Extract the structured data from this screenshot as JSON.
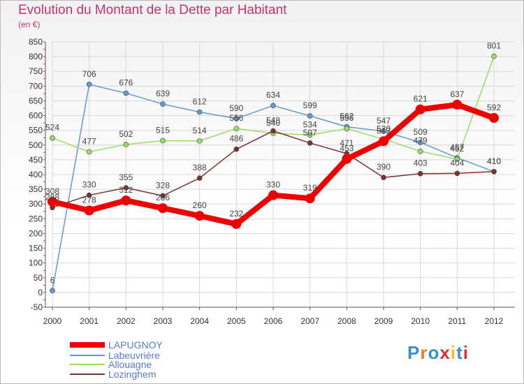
{
  "header": {
    "title": "Evolution du Montant de la Dette par Habitant",
    "subtitle": "(en €)"
  },
  "chart_data": {
    "type": "line",
    "title": "Evolution du Montant de la Dette par Habitant",
    "subtitle": "(en €)",
    "xlabel": "",
    "ylabel": "",
    "x": [
      "2000",
      "2001",
      "2002",
      "2003",
      "2004",
      "2005",
      "2006",
      "2007",
      "2008",
      "2009",
      "2010",
      "2011",
      "2012"
    ],
    "ylim": [
      -50,
      850
    ],
    "yticks": [
      -50,
      0,
      50,
      100,
      150,
      200,
      250,
      300,
      350,
      400,
      450,
      500,
      550,
      600,
      650,
      700,
      750,
      800,
      850
    ],
    "grid": true,
    "legend_position": "bottom-left",
    "series": [
      {
        "name": "LAPUGNOY",
        "color": "#ee0000",
        "values": [
          308,
          278,
          312,
          286,
          260,
          232,
          330,
          319,
          453,
          513,
          621,
          637,
          592
        ]
      },
      {
        "name": "Labeuvrière",
        "color": "#6699cc",
        "values": [
          6,
          706,
          676,
          639,
          612,
          590,
          634,
          599,
          562,
          547,
          509,
          457,
          410
        ]
      },
      {
        "name": "Allouagne",
        "color": "#99dd66",
        "values": [
          524,
          477,
          502,
          515,
          514,
          556,
          540,
          534,
          556,
          520,
          479,
          452,
          801
        ]
      },
      {
        "name": "Lozinghem",
        "color": "#7a3333",
        "values": [
          288,
          330,
          355,
          328,
          388,
          486,
          548,
          507,
          471,
          390,
          403,
          404,
          410
        ]
      }
    ]
  },
  "legend": {
    "items": [
      {
        "label": "LAPUGNOY"
      },
      {
        "label": "Labeuvrière"
      },
      {
        "label": "Allouagne"
      },
      {
        "label": "Lozinghem"
      }
    ]
  },
  "logo": {
    "text": "Proxiti"
  }
}
